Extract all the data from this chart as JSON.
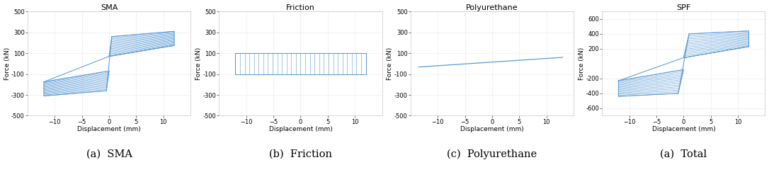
{
  "subplots": [
    {
      "title": "SMA",
      "xlabel": "Displacement (mm)",
      "ylabel": "Force (kN)",
      "caption": "(a)  SMA",
      "xlim": [
        -15,
        15
      ],
      "ylim": [
        -500,
        500
      ],
      "yticks": [
        -500,
        -300,
        -100,
        100,
        300,
        500
      ],
      "ytick_labels": [
        "-500",
        "-300",
        "-100",
        "100",
        "300",
        "500"
      ],
      "xticks": [
        -10,
        -5,
        0,
        5,
        10
      ],
      "type": "sma"
    },
    {
      "title": "Friction",
      "xlabel": "Displacement (mm)",
      "ylabel": "Force (kN)",
      "caption": "(b)  Friction",
      "xlim": [
        -15,
        15
      ],
      "ylim": [
        -500,
        500
      ],
      "yticks": [
        -500,
        -300,
        -100,
        100,
        300,
        500
      ],
      "ytick_labels": [
        "-500",
        "-300",
        "-100",
        "100",
        "300",
        "500"
      ],
      "xticks": [
        -10,
        -5,
        0,
        5,
        10
      ],
      "type": "friction"
    },
    {
      "title": "Polyurethane",
      "xlabel": "Displacement (mm)",
      "ylabel": "Force (kN)",
      "caption": "(c)  Polyurethane",
      "xlim": [
        -15,
        15
      ],
      "ylim": [
        -500,
        500
      ],
      "yticks": [
        -500,
        -300,
        -100,
        100,
        300,
        500
      ],
      "ytick_labels": [
        "-500",
        "-300",
        "-100",
        "100",
        "300",
        "500"
      ],
      "xticks": [
        -10,
        -5,
        0,
        5,
        10
      ],
      "type": "polyurethane"
    },
    {
      "title": "SPF",
      "xlabel": "Displacement (mm)",
      "ylabel": "Force (kN)",
      "caption": "(a)  Total",
      "xlim": [
        -15,
        15
      ],
      "ylim": [
        -700,
        700
      ],
      "yticks": [
        -600,
        -400,
        -200,
        200,
        400,
        600
      ],
      "ytick_labels": [
        "-600",
        "-400",
        "-200",
        "200",
        "400",
        "600"
      ],
      "xticks": [
        -10,
        -5,
        0,
        5,
        10
      ],
      "type": "spf"
    }
  ],
  "line_color": "#5B9BD5",
  "background_color": "#ffffff",
  "grid_color": "#e8e8e8",
  "title_fontsize": 8,
  "label_fontsize": 6.5,
  "tick_fontsize": 6,
  "caption_fontsize": 10.5
}
